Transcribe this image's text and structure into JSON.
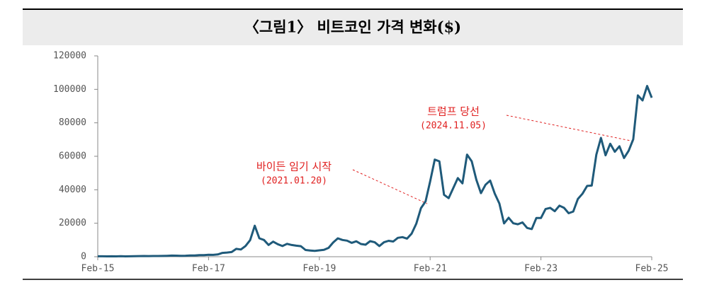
{
  "chart_data": {
    "type": "line",
    "title": "〈그림1〉 비트코인 가격 변화($)",
    "x": [
      "2015-02",
      "2015-03",
      "2015-04",
      "2015-05",
      "2015-06",
      "2015-07",
      "2015-08",
      "2015-09",
      "2015-10",
      "2015-11",
      "2015-12",
      "2016-01",
      "2016-02",
      "2016-03",
      "2016-04",
      "2016-05",
      "2016-06",
      "2016-07",
      "2016-08",
      "2016-09",
      "2016-10",
      "2016-11",
      "2016-12",
      "2017-01",
      "2017-02",
      "2017-03",
      "2017-04",
      "2017-05",
      "2017-06",
      "2017-07",
      "2017-08",
      "2017-09",
      "2017-10",
      "2017-11",
      "2017-12",
      "2018-01",
      "2018-02",
      "2018-03",
      "2018-04",
      "2018-05",
      "2018-06",
      "2018-07",
      "2018-08",
      "2018-09",
      "2018-10",
      "2018-11",
      "2018-12",
      "2019-01",
      "2019-02",
      "2019-03",
      "2019-04",
      "2019-05",
      "2019-06",
      "2019-07",
      "2019-08",
      "2019-09",
      "2019-10",
      "2019-11",
      "2019-12",
      "2020-01",
      "2020-02",
      "2020-03",
      "2020-04",
      "2020-05",
      "2020-06",
      "2020-07",
      "2020-08",
      "2020-09",
      "2020-10",
      "2020-11",
      "2020-12",
      "2021-01",
      "2021-02",
      "2021-03",
      "2021-04",
      "2021-05",
      "2021-06",
      "2021-07",
      "2021-08",
      "2021-09",
      "2021-10",
      "2021-11",
      "2021-12",
      "2022-01",
      "2022-02",
      "2022-03",
      "2022-04",
      "2022-05",
      "2022-06",
      "2022-07",
      "2022-08",
      "2022-09",
      "2022-10",
      "2022-11",
      "2022-12",
      "2023-01",
      "2023-02",
      "2023-03",
      "2023-04",
      "2023-05",
      "2023-06",
      "2023-07",
      "2023-08",
      "2023-09",
      "2023-10",
      "2023-11",
      "2023-12",
      "2024-01",
      "2024-02",
      "2024-03",
      "2024-04",
      "2024-05",
      "2024-06",
      "2024-07",
      "2024-08",
      "2024-09",
      "2024-10",
      "2024-11",
      "2024-12",
      "2025-01",
      "2025-02"
    ],
    "series": [
      {
        "color": "#1f5a7a",
        "values": [
          250,
          260,
          230,
          240,
          230,
          280,
          230,
          240,
          310,
          370,
          430,
          380,
          410,
          420,
          450,
          530,
          670,
          620,
          570,
          610,
          700,
          740,
          960,
          970,
          1200,
          1080,
          1350,
          2300,
          2500,
          2800,
          4700,
          4300,
          6400,
          9900,
          18500,
          11000,
          10000,
          7000,
          9000,
          7500,
          6400,
          7700,
          7000,
          6600,
          6300,
          4000,
          3700,
          3450,
          3800,
          4100,
          5300,
          8500,
          11000,
          10000,
          9600,
          8300,
          9200,
          7600,
          7200,
          9300,
          8600,
          6400,
          8600,
          9500,
          9100,
          11300,
          11700,
          10800,
          13800,
          19700,
          29000,
          33000,
          45000,
          58000,
          57000,
          37000,
          35000,
          41000,
          47000,
          43800,
          61000,
          57000,
          46000,
          38000,
          43000,
          45500,
          37700,
          31800,
          19900,
          23300,
          20000,
          19400,
          20500,
          17200,
          16500,
          23100,
          23100,
          28500,
          29200,
          27200,
          30500,
          29200,
          26000,
          27000,
          34500,
          37700,
          42300,
          42500,
          61000,
          71000,
          60600,
          67500,
          62700,
          66000,
          59000,
          63300,
          70200,
          96400,
          93400,
          102000,
          95000
        ]
      }
    ],
    "xlim": [
      "2015-02",
      "2025-02"
    ],
    "xticks": [
      {
        "value": "2015-02",
        "label": "Feb-15"
      },
      {
        "value": "2017-02",
        "label": "Feb-17"
      },
      {
        "value": "2019-02",
        "label": "Feb-19"
      },
      {
        "value": "2021-02",
        "label": "Feb-21"
      },
      {
        "value": "2023-02",
        "label": "Feb-23"
      },
      {
        "value": "2025-02",
        "label": "Feb-25"
      }
    ],
    "ylim": [
      0,
      120000
    ],
    "yticks": [
      0,
      20000,
      40000,
      60000,
      80000,
      100000,
      120000
    ],
    "annotations": [
      {
        "text": "바이든 임기 시작",
        "date": "(2021.01.20)"
      },
      {
        "text": "트럼프 당선",
        "date": "(2024.11.05)"
      }
    ]
  }
}
